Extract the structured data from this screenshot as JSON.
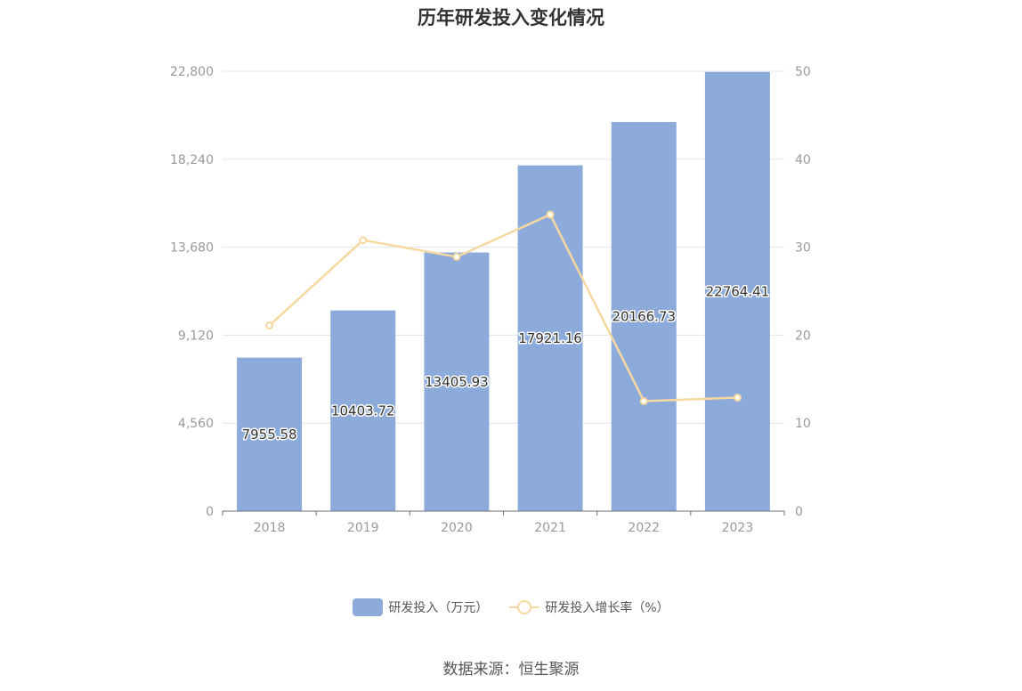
{
  "colors": {
    "bar": "#8dabda",
    "line": "#f7d9a0",
    "grid": "#e0e6f1",
    "axis": "#6e7079"
  },
  "chart_data": {
    "type": "bar",
    "title": "历年研发投入变化情况",
    "categories": [
      "2018",
      "2019",
      "2020",
      "2021",
      "2022",
      "2023"
    ],
    "series": [
      {
        "name": "研发投入（万元）",
        "type": "bar",
        "axis": "left",
        "values": [
          7955.58,
          10403.72,
          13405.93,
          17921.16,
          20166.73,
          22764.41
        ],
        "labels": [
          "7955.58",
          "10403.72",
          "13405.93",
          "17921.16",
          "20166.73",
          "22764.41"
        ]
      },
      {
        "name": "研发投入增长率（%）",
        "type": "line",
        "axis": "right",
        "values": [
          21.1,
          30.8,
          28.9,
          33.7,
          12.5,
          12.9
        ]
      }
    ],
    "y_left": {
      "ylim": [
        0,
        22800
      ],
      "ticks": [
        0,
        4560,
        9120,
        13680,
        18240,
        22800
      ],
      "tick_labels": [
        "0",
        "4,560",
        "9,120",
        "13,680",
        "18,240",
        "22,800"
      ]
    },
    "y_right": {
      "ylim": [
        0,
        50
      ],
      "ticks": [
        0,
        10,
        20,
        30,
        40,
        50
      ],
      "tick_labels": [
        "0",
        "10",
        "20",
        "30",
        "40",
        "50"
      ]
    },
    "grid": true,
    "legend_position": "bottom-center"
  },
  "legend": {
    "bar_label": "研发投入（万元）",
    "line_label": "研发投入增长率（%）"
  },
  "source": "数据来源：恒生聚源"
}
